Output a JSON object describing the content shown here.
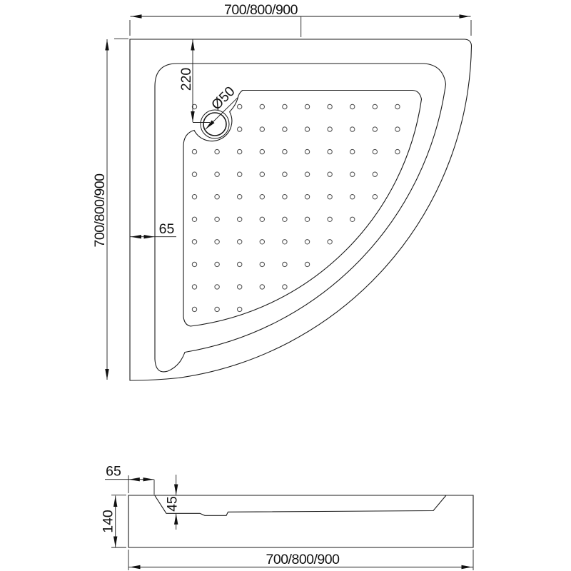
{
  "drawing": {
    "type": "shower-tray-technical-drawing",
    "top_view": {
      "width_label": "700/800/900",
      "height_label": "700/800/900",
      "drain_offset_label": "220",
      "drain_diameter_label": "Ø50",
      "rim_width_label": "65"
    },
    "section_view": {
      "rim_width_label": "65",
      "basin_depth_label": "45",
      "total_height_label": "140",
      "width_label": "700/800/900"
    },
    "colors": {
      "line": "#1a1a1a",
      "text": "#111111",
      "dot": "#4a4a4a",
      "background": "#ffffff"
    }
  }
}
